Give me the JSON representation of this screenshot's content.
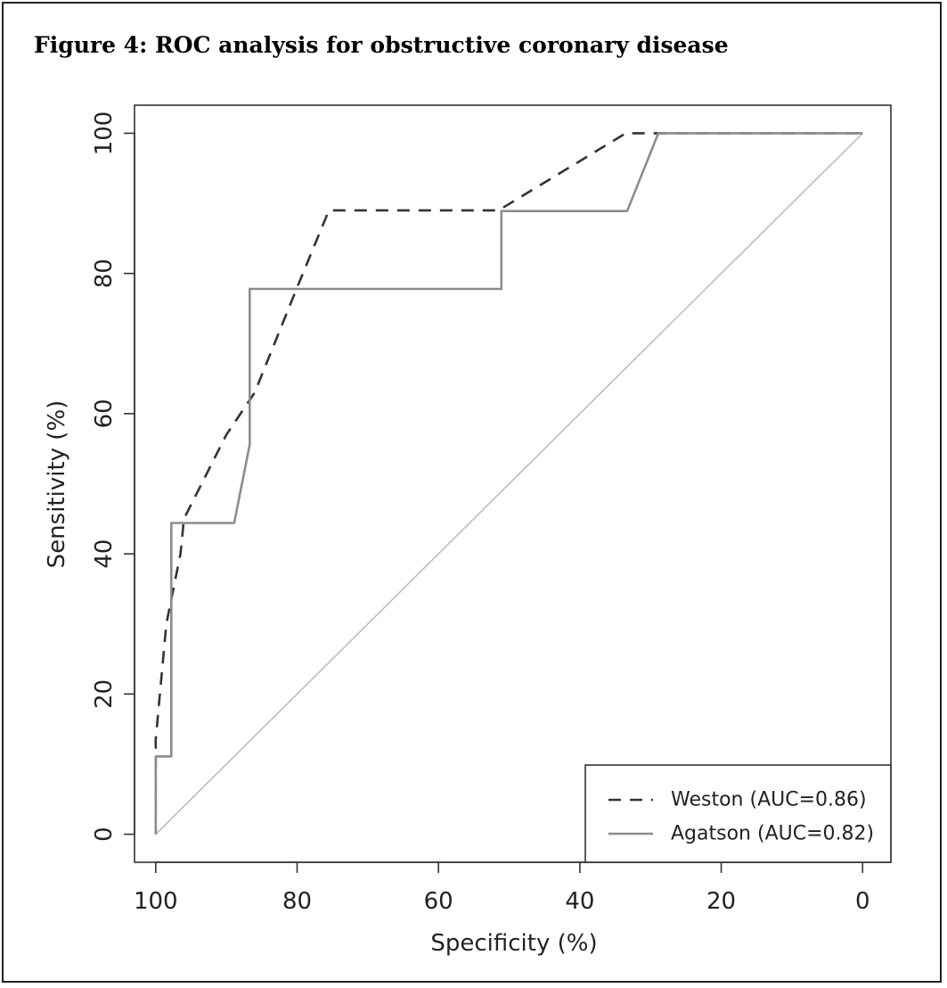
{
  "figure_title": "Figure 4: ROC analysis for obstructive coronary disease",
  "colors": {
    "frame": "#222222",
    "axis": "#333333",
    "weston": "#333333",
    "agatson": "#8c8c8c",
    "diagonal": "#bdbdbd"
  },
  "chart_data": {
    "type": "line",
    "title": "Figure 4: ROC analysis for obstructive coronary disease",
    "xlabel": "Specificity (%)",
    "ylabel": "Sensitivity (%)",
    "x_reversed": true,
    "xlim": [
      103,
      -4
    ],
    "ylim": [
      -4,
      104
    ],
    "xticks": [
      100,
      80,
      60,
      40,
      20,
      0
    ],
    "yticks": [
      0,
      20,
      40,
      60,
      80,
      100
    ],
    "grid": false,
    "legend_position": "bottom-right",
    "reference_line": {
      "x": [
        100,
        0
      ],
      "y": [
        0,
        100
      ]
    },
    "series": [
      {
        "name": "Weston (AUC=0.86)",
        "style": "dashed",
        "x": [
          100,
          100,
          98.5,
          96.5,
          96,
          90,
          86,
          80,
          75.5,
          51.5,
          33.5,
          0
        ],
        "y": [
          0,
          13.5,
          30,
          40,
          45,
          57,
          63,
          78,
          89,
          89,
          100,
          100
        ]
      },
      {
        "name": "Agatson (AUC=0.82)",
        "style": "solid",
        "x": [
          100,
          100,
          97.8,
          97.8,
          88.9,
          86.7,
          86.7,
          51.1,
          51.1,
          33.3,
          28.9,
          0
        ],
        "y": [
          0,
          11.1,
          11.1,
          44.4,
          44.4,
          55.6,
          77.8,
          77.8,
          88.9,
          88.9,
          100,
          100
        ]
      }
    ]
  }
}
